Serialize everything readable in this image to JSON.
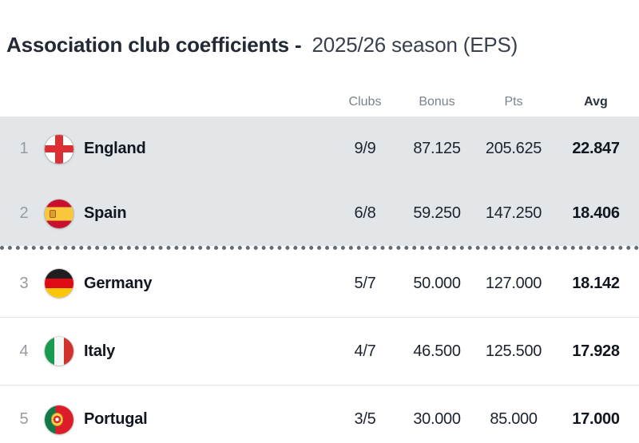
{
  "title": {
    "main": "Association club coefficients -",
    "season": "2025/26 season (EPS)"
  },
  "table": {
    "columns": [
      "Clubs",
      "Bonus",
      "Pts",
      "Avg"
    ],
    "rows": [
      {
        "rank": "1",
        "country": "England",
        "flag": "england",
        "clubs": "9/9",
        "bonus": "87.125",
        "pts": "205.625",
        "avg": "22.847",
        "highlighted": true
      },
      {
        "rank": "2",
        "country": "Spain",
        "flag": "spain",
        "clubs": "6/8",
        "bonus": "59.250",
        "pts": "147.250",
        "avg": "18.406",
        "highlighted": true
      },
      {
        "rank": "3",
        "country": "Germany",
        "flag": "germany",
        "clubs": "5/7",
        "bonus": "50.000",
        "pts": "127.000",
        "avg": "18.142",
        "highlighted": false
      },
      {
        "rank": "4",
        "country": "Italy",
        "flag": "italy",
        "clubs": "4/7",
        "bonus": "46.500",
        "pts": "125.500",
        "avg": "17.928",
        "highlighted": false
      },
      {
        "rank": "5",
        "country": "Portugal",
        "flag": "portugal",
        "clubs": "3/5",
        "bonus": "30.000",
        "pts": "85.000",
        "avg": "17.000",
        "highlighted": false
      }
    ],
    "cutoff_after_rank": 2
  },
  "colors": {
    "highlight_row_bg": "#e3e6e9",
    "text_dark": "#12161f",
    "muted_text": "#7a828c",
    "cutoff_dots": "#646b75",
    "row_border": "#e3e6e8"
  }
}
